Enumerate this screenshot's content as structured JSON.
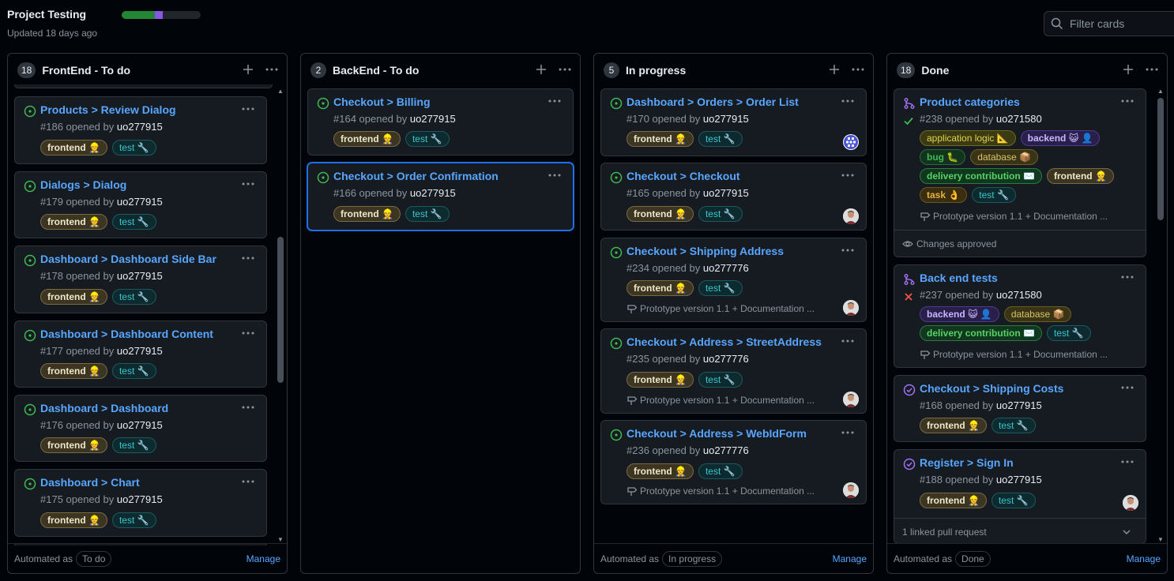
{
  "project": {
    "title": "Project Testing",
    "updated": "Updated 18 days ago"
  },
  "filter": {
    "placeholder": "Filter cards"
  },
  "labels": {
    "frontend": "frontend 👷",
    "test": "test 🔧",
    "app_logic": "application logic 📐",
    "backend": "backend 😺 👤",
    "bug": "bug 🐛",
    "database": "database 📦",
    "delivery": "delivery contribution ✉️",
    "task": "task 👌"
  },
  "columns": [
    {
      "title": "FrontEnd - To do",
      "count": "18",
      "automated_as": "Automated as",
      "automation": "To do",
      "manage": "Manage",
      "cards": [
        {
          "title": "Products > Review Dialog",
          "num": "#186 opened by",
          "user": "uo277915"
        },
        {
          "title": "Dialogs > Dialog",
          "num": "#179 opened by",
          "user": "uo277915"
        },
        {
          "title": "Dashboard > Dashboard Side Bar",
          "num": "#178 opened by",
          "user": "uo277915"
        },
        {
          "title": "Dashboard > Dashboard Content",
          "num": "#177 opened by",
          "user": "uo277915"
        },
        {
          "title": "Dashboard > Dashboard",
          "num": "#176 opened by",
          "user": "uo277915"
        },
        {
          "title": "Dashboard > Chart",
          "num": "#175 opened by",
          "user": "uo277915"
        }
      ]
    },
    {
      "title": "BackEnd - To do",
      "count": "2",
      "cards": [
        {
          "title": "Checkout > Billing",
          "num": "#164 opened by",
          "user": "uo277915"
        },
        {
          "title": "Checkout > Order Confirmation",
          "num": "#166 opened by",
          "user": "uo277915"
        }
      ]
    },
    {
      "title": "In progress",
      "count": "5",
      "automated_as": "Automated as",
      "automation": "In progress",
      "manage": "Manage",
      "cards": [
        {
          "title": "Dashboard > Orders > Order List",
          "num": "#170 opened by",
          "user": "uo277915"
        },
        {
          "title": "Checkout > Checkout",
          "num": "#165 opened by",
          "user": "uo277915"
        },
        {
          "title": "Checkout > Shipping Address",
          "num": "#234 opened by",
          "user": "uo277776",
          "project": "Prototype version 1.1 + Documentation ..."
        },
        {
          "title": "Checkout > Address > StreetAddress",
          "num": "#235 opened by",
          "user": "uo277776",
          "project": "Prototype version 1.1 + Documentation ..."
        },
        {
          "title": "Checkout > Address > WebIdForm",
          "num": "#236 opened by",
          "user": "uo277776",
          "project": "Prototype version 1.1 + Documentation ..."
        }
      ]
    },
    {
      "title": "Done",
      "count": "18",
      "automated_as": "Automated as",
      "automation": "Done",
      "manage": "Manage",
      "cards": [
        {
          "title": "Product categories",
          "num": "#238 opened by",
          "user": "uo271580",
          "project": "Prototype version 1.1 + Documentation ...",
          "review": "Changes approved"
        },
        {
          "title": "Back end tests",
          "num": "#237 opened by",
          "user": "uo271580",
          "project": "Prototype version 1.1 + Documentation ..."
        },
        {
          "title": "Checkout > Shipping Costs",
          "num": "#168 opened by",
          "user": "uo277915"
        },
        {
          "title": "Register > Sign In",
          "num": "#188 opened by",
          "user": "uo277915",
          "linked": "1 linked pull request"
        }
      ]
    }
  ],
  "colors": {
    "open": "#3fb950",
    "closed": "#a371f7",
    "merged": "#a371f7",
    "link": "#58a6ff",
    "fail": "#f85149"
  }
}
